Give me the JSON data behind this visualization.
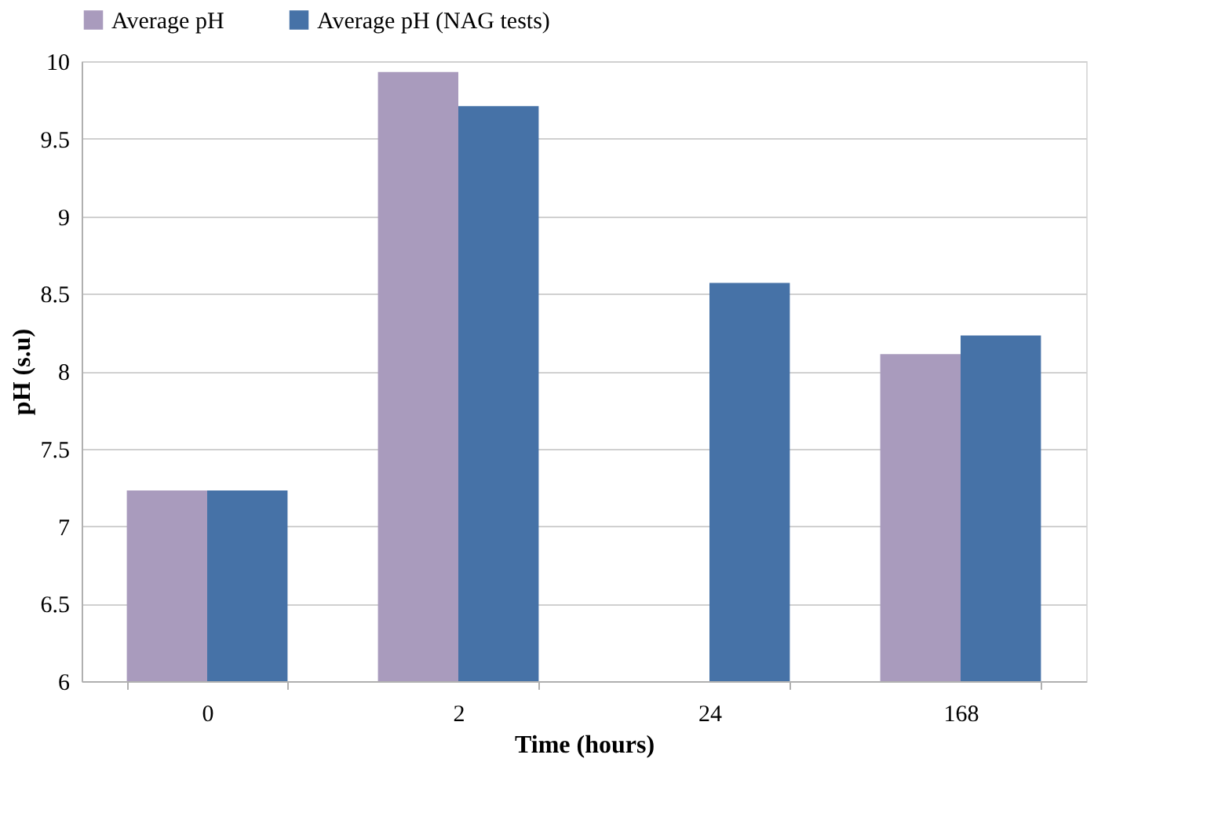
{
  "chart_data": {
    "type": "bar",
    "xlabel": "Time (hours)",
    "ylabel": "pH (s.u)",
    "categories": [
      "0",
      "2",
      "24",
      "168"
    ],
    "series": [
      {
        "name": "Average pH",
        "color": "#a99bbd",
        "values": [
          7.23,
          9.93,
          null,
          8.11
        ]
      },
      {
        "name": "Average pH (NAG tests)",
        "color": "#4672a7",
        "values": [
          7.23,
          9.71,
          8.57,
          8.23
        ]
      }
    ],
    "ylim": [
      6,
      10
    ],
    "yticks": [
      6,
      6.5,
      7,
      7.5,
      8,
      8.5,
      9,
      9.5,
      10
    ],
    "grid": "y",
    "legend": "top"
  }
}
